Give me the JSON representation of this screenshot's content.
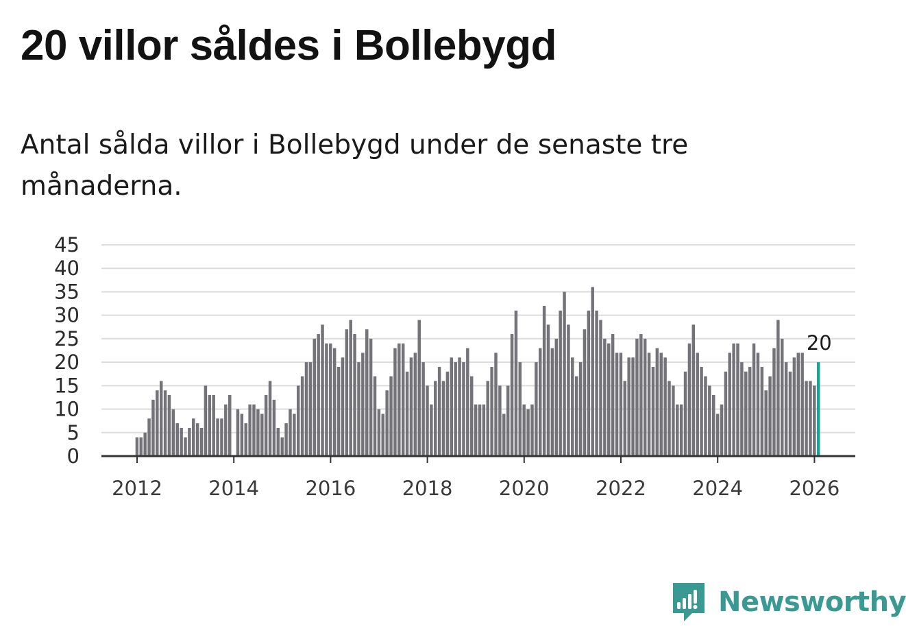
{
  "title": "20 villor såldes i Bollebygd",
  "subtitle": "Antal sålda villor i Bollebygd under de senaste tre månaderna.",
  "brand": {
    "name": "Newsworthy",
    "icon": "newsworthy-logo-icon",
    "color": "#3a9a92"
  },
  "colors": {
    "bar": "#74737a",
    "highlight": "#1fa195",
    "grid": "#dcdcdc",
    "axis": "#333333"
  },
  "chart_data": {
    "type": "bar",
    "title": "20 villor såldes i Bollebygd",
    "subtitle": "Antal sålda villor i Bollebygd under de senaste tre månaderna.",
    "xlabel": "",
    "ylabel": "",
    "ylim": [
      0,
      45
    ],
    "yticks": [
      "0",
      "5",
      "10",
      "15",
      "20",
      "25",
      "30",
      "35",
      "40",
      "45"
    ],
    "xticks": [
      {
        "label": "2012",
        "x": 2012
      },
      {
        "label": "2014",
        "x": 2014
      },
      {
        "label": "2016",
        "x": 2016
      },
      {
        "label": "2018",
        "x": 2018
      },
      {
        "label": "2020",
        "x": 2020
      },
      {
        "label": "2022",
        "x": 2022
      },
      {
        "label": "2024",
        "x": 2024
      },
      {
        "label": "2026",
        "x": 2026
      }
    ],
    "x_start": 2012.0,
    "x_step_months": 1,
    "grid": true,
    "last_value_label": "20",
    "values": [
      4,
      4,
      5,
      8,
      12,
      14,
      16,
      14,
      13,
      10,
      7,
      6,
      4,
      6,
      8,
      7,
      6,
      15,
      13,
      13,
      8,
      8,
      11,
      13,
      0,
      10,
      9,
      7,
      11,
      11,
      10,
      9,
      13,
      16,
      12,
      6,
      4,
      7,
      10,
      9,
      15,
      17,
      20,
      20,
      25,
      26,
      28,
      24,
      24,
      23,
      19,
      21,
      27,
      29,
      26,
      20,
      22,
      27,
      25,
      17,
      10,
      9,
      14,
      17,
      23,
      24,
      24,
      18,
      21,
      22,
      29,
      20,
      15,
      11,
      16,
      19,
      16,
      18,
      21,
      20,
      21,
      20,
      23,
      17,
      11,
      11,
      11,
      16,
      19,
      22,
      15,
      9,
      15,
      26,
      31,
      20,
      11,
      10,
      11,
      20,
      23,
      32,
      28,
      23,
      25,
      31,
      35,
      28,
      21,
      17,
      20,
      27,
      31,
      36,
      31,
      29,
      25,
      24,
      26,
      22,
      22,
      16,
      21,
      21,
      25,
      26,
      25,
      22,
      19,
      23,
      22,
      21,
      16,
      15,
      11,
      11,
      18,
      24,
      28,
      22,
      19,
      17,
      15,
      13,
      9,
      11,
      18,
      22,
      24,
      24,
      20,
      18,
      19,
      24,
      22,
      19,
      14,
      17,
      23,
      29,
      25,
      20,
      18,
      21,
      22,
      22,
      16,
      16,
      15,
      20
    ]
  }
}
